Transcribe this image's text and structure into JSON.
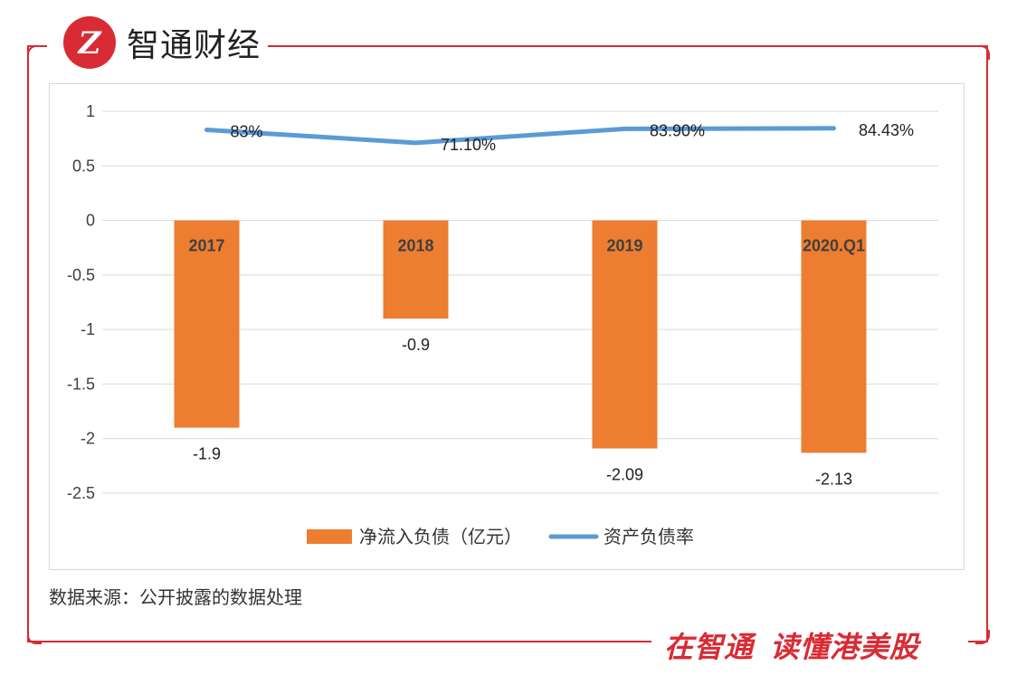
{
  "brand": {
    "name": "智通财经",
    "logo_glyph": "Z"
  },
  "colors": {
    "frame": "#d92b34",
    "bar": "#ed7d31",
    "line": "#5b9bd5",
    "grid": "#d9d9d9",
    "text": "#404040"
  },
  "chart_data": {
    "type": "bar+line",
    "categories": [
      "2017",
      "2018",
      "2019",
      "2020.Q1"
    ],
    "ylim": [
      -2.5,
      1
    ],
    "yticks": [
      1,
      0.5,
      0,
      -0.5,
      -1,
      -1.5,
      -2,
      -2.5
    ],
    "ytick_labels": [
      "1",
      "0.5",
      "0",
      "-0.5",
      "-1",
      "-1.5",
      "-2",
      "-2.5"
    ],
    "grid": true,
    "legend_position": "bottom",
    "series": [
      {
        "name": "净流入负债（亿元）",
        "type": "bar",
        "color": "#ed7d31",
        "values": [
          -1.9,
          -0.9,
          -2.09,
          -2.13
        ],
        "labels": [
          "-1.9",
          "-0.9",
          "-2.09",
          "-2.13"
        ]
      },
      {
        "name": "资产负债率",
        "type": "line",
        "color": "#5b9bd5",
        "values": [
          0.83,
          0.711,
          0.839,
          0.8443
        ],
        "labels": [
          "83%",
          "71.10%",
          "83.90%",
          "84.43%"
        ]
      }
    ]
  },
  "source_text": "数据来源：公开披露的数据处理",
  "slogan": {
    "part1": "在智通",
    "part2": "读懂港美股"
  }
}
